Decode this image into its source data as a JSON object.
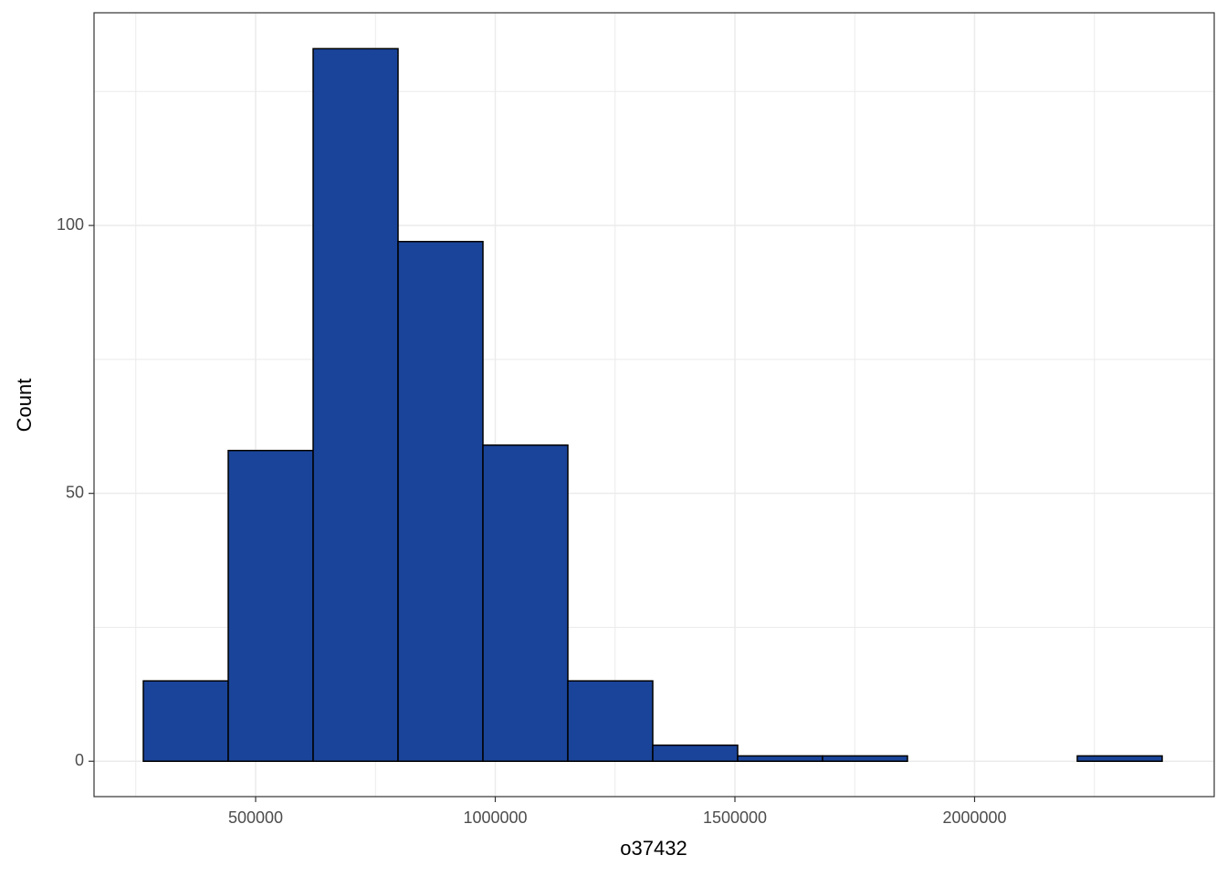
{
  "chart_data": {
    "type": "histogram",
    "x_label": "o37432",
    "y_label": "Count",
    "bins": [
      265714,
      442857,
      620000,
      797143,
      974286,
      1151429,
      1328571,
      1505714,
      1682857,
      1860000,
      2037143,
      2214286,
      2391429
    ],
    "counts": [
      15,
      58,
      133,
      97,
      59,
      15,
      3,
      1,
      1,
      0,
      0,
      1
    ],
    "color": "#1a4499",
    "edge_color": "#000000",
    "xlim": [
      162857,
      2500000
    ],
    "ylim": [
      -6.6,
      139.7
    ],
    "xticks": [
      500000,
      1000000,
      1500000,
      2000000
    ],
    "yticks": [
      0,
      50,
      100
    ],
    "x_minor_ticks": [
      250000,
      750000,
      1250000,
      1750000,
      2250000
    ],
    "y_minor_ticks": [
      25,
      75,
      125
    ],
    "grid": true
  }
}
